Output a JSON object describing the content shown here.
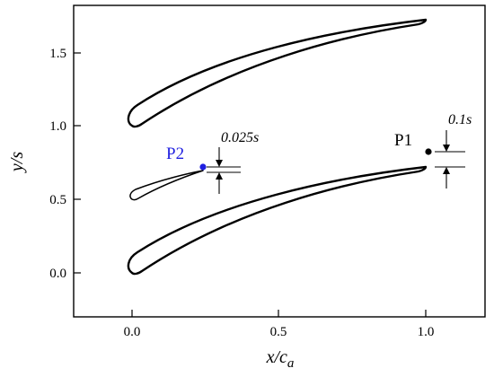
{
  "figure": {
    "x_axis": {
      "label_main": "x/c",
      "label_sub": "a",
      "ticks": [
        "0.0",
        "0.5",
        "1.0"
      ],
      "tick_values": [
        0,
        0.5,
        1.0
      ],
      "range": [
        -0.2,
        1.2
      ]
    },
    "y_axis": {
      "label": "y/s",
      "ticks": [
        "0.0",
        "0.5",
        "1.0",
        "1.5"
      ],
      "tick_values": [
        0,
        0.5,
        1.0,
        1.5
      ],
      "range": [
        -0.3,
        1.75
      ]
    },
    "points": [
      {
        "id": "P2",
        "label": "P2",
        "x": 0.24,
        "y": 0.72,
        "color": "#1f1fe0"
      },
      {
        "id": "P1",
        "label": "P1",
        "x": 1.01,
        "y": 0.82,
        "color": "#000000"
      }
    ],
    "annotations": {
      "p2_gap": "0.025s",
      "p1_gap": "0.1s"
    },
    "colors": {
      "profile": "#000000",
      "frame": "#000000",
      "p2": "#1f1fe0"
    }
  }
}
